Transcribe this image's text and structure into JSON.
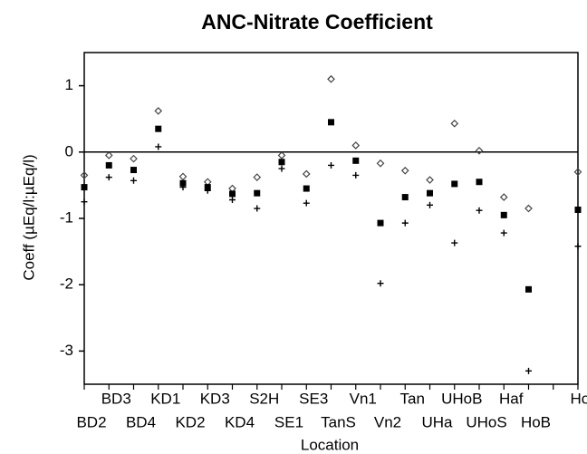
{
  "chart_data": {
    "type": "scatter",
    "title": "ANC-Nitrate Coefficient",
    "x_label": "Location",
    "y_label": "Coeff (µEq/l:µEq/l)",
    "categories": [
      "BD2",
      "BD3",
      "BD4",
      "KD1",
      "KD2",
      "KD3",
      "KD4",
      "S2H",
      "SE1",
      "SE3",
      "TanS",
      "Vn1",
      "Vn2",
      "Tan",
      "UHa",
      "UHoB",
      "UHoS",
      "Haf",
      "HoB",
      null,
      "HoS"
    ],
    "series": [
      {
        "marker": "diamond",
        "color": "#444444",
        "values": [
          -0.35,
          -0.05,
          -0.1,
          0.62,
          -0.37,
          -0.45,
          -0.55,
          -0.38,
          -0.05,
          -0.33,
          1.1,
          0.1,
          -0.17,
          -0.28,
          -0.42,
          0.43,
          0.02,
          -0.68,
          -0.85,
          null,
          -0.3
        ]
      },
      {
        "marker": "square",
        "color": "#000000",
        "values": [
          -0.53,
          -0.2,
          -0.27,
          0.35,
          -0.47,
          -0.53,
          -0.63,
          -0.62,
          -0.15,
          -0.55,
          0.45,
          -0.13,
          -1.07,
          -0.68,
          -0.62,
          -0.48,
          -0.45,
          -0.95,
          -2.07,
          null,
          -0.87
        ]
      },
      {
        "marker": "plus",
        "color": "#000000",
        "values": [
          -0.75,
          -0.38,
          -0.43,
          0.08,
          -0.53,
          -0.58,
          -0.72,
          -0.85,
          -0.25,
          -0.77,
          -0.2,
          -0.35,
          -1.98,
          -1.07,
          -0.8,
          -1.37,
          -0.88,
          -1.22,
          -3.3,
          null,
          -1.42
        ]
      }
    ],
    "ylim": [
      -3.5,
      1.5
    ],
    "yticks": [
      -3,
      -2,
      -1,
      0,
      1
    ],
    "zero_line": true
  }
}
